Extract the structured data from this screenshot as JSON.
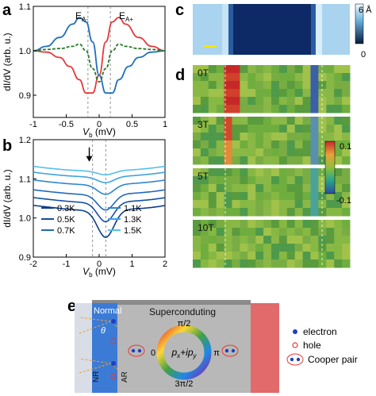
{
  "panels": {
    "a": {
      "letter": "a",
      "ylabel": "dI/dV (arb. u.)",
      "xlabel_main": "V",
      "xlabel_sub": "b",
      "xlabel_unit": " (mV)",
      "annotation_minus_main": "E",
      "annotation_minus_sub": "A-",
      "annotation_plus_main": "E",
      "annotation_plus_sub": "A+"
    },
    "b": {
      "letter": "b",
      "ylabel": "dI/dV (arb. u.)",
      "xlabel_main": "V",
      "xlabel_sub": "b",
      "xlabel_unit": " (mV)"
    },
    "c": {
      "letter": "c",
      "colorbar_max": "6 Å",
      "colorbar_min": "0"
    },
    "d": {
      "letter": "d",
      "field_labels": [
        "0T",
        "3T",
        "5T",
        "10T"
      ],
      "colorbar_max": "0.1",
      "colorbar_min": "-0.1"
    },
    "e": {
      "letter": "e",
      "normal_label": "Normal",
      "superconducting_label": "Superconduting",
      "theta_label": "θ",
      "nr_label": "NR",
      "ar_label": "AR",
      "wheel_top": "π/2",
      "wheel_left": "0",
      "wheel_right": "π",
      "wheel_bottom": "3π/2",
      "wheel_center_main_1": "p",
      "wheel_center_sub_1": "x",
      "wheel_center_main_2": "+ip",
      "wheel_center_sub_2": "y",
      "legend": [
        "electron",
        "hole",
        "Cooper pair"
      ]
    }
  },
  "chart_data": [
    {
      "panel": "a",
      "type": "line",
      "xlim": [
        -1,
        1
      ],
      "ylim": [
        0.85,
        1.1
      ],
      "xticks": [
        "-1",
        "-0.5",
        "0",
        "0.5",
        "1"
      ],
      "yticks": [
        "0.9",
        "1.0",
        "1.1"
      ],
      "guide_lines_x": [
        -0.17,
        0.17
      ],
      "series": [
        {
          "color": "#e8393c",
          "dash": "solid",
          "x": [
            -1,
            -0.8,
            -0.6,
            -0.45,
            -0.3,
            -0.2,
            -0.1,
            0,
            0.1,
            0.2,
            0.3,
            0.4,
            0.6,
            0.8,
            1
          ],
          "y": [
            1.0,
            0.997,
            0.985,
            0.965,
            0.935,
            0.905,
            0.905,
            0.945,
            1.02,
            1.065,
            1.075,
            1.06,
            1.03,
            1.01,
            1.0
          ]
        },
        {
          "color": "#1f6fbf",
          "dash": "solid",
          "x": [
            -1,
            -0.8,
            -0.6,
            -0.4,
            -0.3,
            -0.2,
            -0.1,
            0,
            0.1,
            0.2,
            0.3,
            0.45,
            0.6,
            0.8,
            1
          ],
          "y": [
            1.0,
            1.01,
            1.03,
            1.06,
            1.075,
            1.065,
            1.02,
            0.945,
            0.905,
            0.905,
            0.935,
            0.965,
            0.985,
            0.997,
            1.0
          ]
        },
        {
          "color": "#2a7a2a",
          "dash": "dashed",
          "x": [
            -1,
            -0.8,
            -0.6,
            -0.4,
            -0.3,
            -0.2,
            -0.1,
            0,
            0.1,
            0.2,
            0.3,
            0.4,
            0.6,
            0.8,
            1
          ],
          "y": [
            1.0,
            1.003,
            1.005,
            1.01,
            1.015,
            1.0,
            0.96,
            0.93,
            0.96,
            1.0,
            1.015,
            1.01,
            1.005,
            1.003,
            1.0
          ]
        }
      ]
    },
    {
      "panel": "b",
      "type": "line",
      "xlim": [
        -2,
        2
      ],
      "ylim": [
        0.9,
        1.2
      ],
      "xticks": [
        "-2",
        "-1",
        "0",
        "1",
        "2"
      ],
      "yticks": [
        "0.9",
        "1.0",
        "1.1",
        "1.2"
      ],
      "guide_lines_x": [
        -0.2,
        0.2
      ],
      "arrow_at": {
        "x": -0.3,
        "y": 1.16
      },
      "series": [
        {
          "name": "0.3K",
          "color": "#0b3d91",
          "offset": 0.0,
          "dip": 0.07
        },
        {
          "name": "0.5K",
          "color": "#134fa6",
          "offset": 0.02,
          "dip": 0.05
        },
        {
          "name": "0.7K",
          "color": "#1f67bd",
          "offset": 0.04,
          "dip": 0.04
        },
        {
          "name": "1.1K",
          "color": "#2f86d1",
          "offset": 0.065,
          "dip": 0.025
        },
        {
          "name": "1.3K",
          "color": "#3ea3e0",
          "offset": 0.085,
          "dip": 0.015
        },
        {
          "name": "1.5K",
          "color": "#55bfea",
          "offset": 0.1,
          "dip": 0.01
        }
      ]
    }
  ]
}
